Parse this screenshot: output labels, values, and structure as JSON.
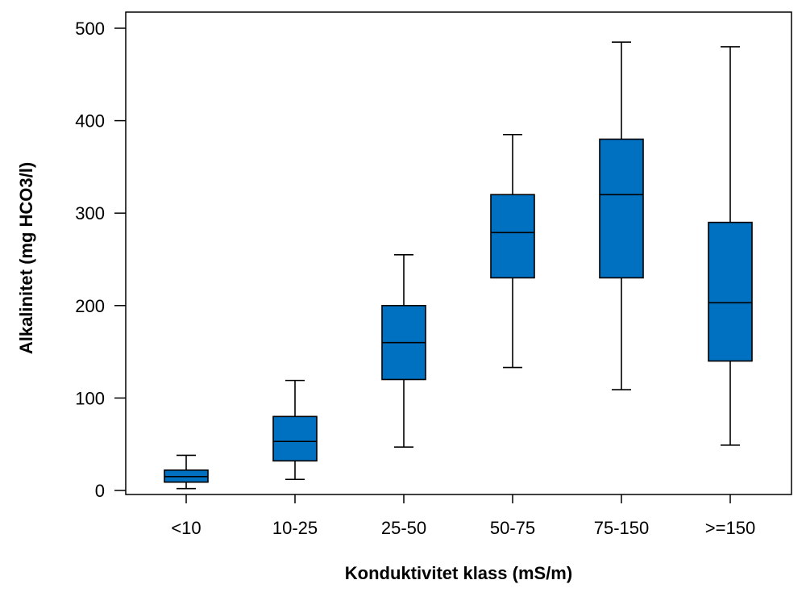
{
  "chart_data": {
    "type": "box",
    "title": "",
    "xlabel": "Konduktivitet klass (mS/m)",
    "ylabel": "Alkalinitet (mg HCO3/l)",
    "ylim": [
      0,
      500
    ],
    "yticks": [
      0,
      100,
      200,
      300,
      400,
      500
    ],
    "grid": false,
    "legend": "none",
    "box_color": "#0070C0",
    "line_color": "#000000",
    "categories": [
      "<10",
      "10-25",
      "25-50",
      "50-75",
      "75-150",
      ">=150"
    ],
    "boxes": [
      {
        "category": "<10",
        "whisker_low": 2,
        "q1": 9,
        "median": 15,
        "q3": 22,
        "whisker_high": 38
      },
      {
        "category": "10-25",
        "whisker_low": 12,
        "q1": 32,
        "median": 53,
        "q3": 80,
        "whisker_high": 119
      },
      {
        "category": "25-50",
        "whisker_low": 47,
        "q1": 120,
        "median": 160,
        "q3": 200,
        "whisker_high": 255
      },
      {
        "category": "50-75",
        "whisker_low": 133,
        "q1": 230,
        "median": 279,
        "q3": 320,
        "whisker_high": 385
      },
      {
        "category": "75-150",
        "whisker_low": 109,
        "q1": 230,
        "median": 320,
        "q3": 380,
        "whisker_high": 485
      },
      {
        "category": ">=150",
        "whisker_low": 49,
        "q1": 140,
        "median": 203,
        "q3": 290,
        "whisker_high": 480
      }
    ]
  }
}
